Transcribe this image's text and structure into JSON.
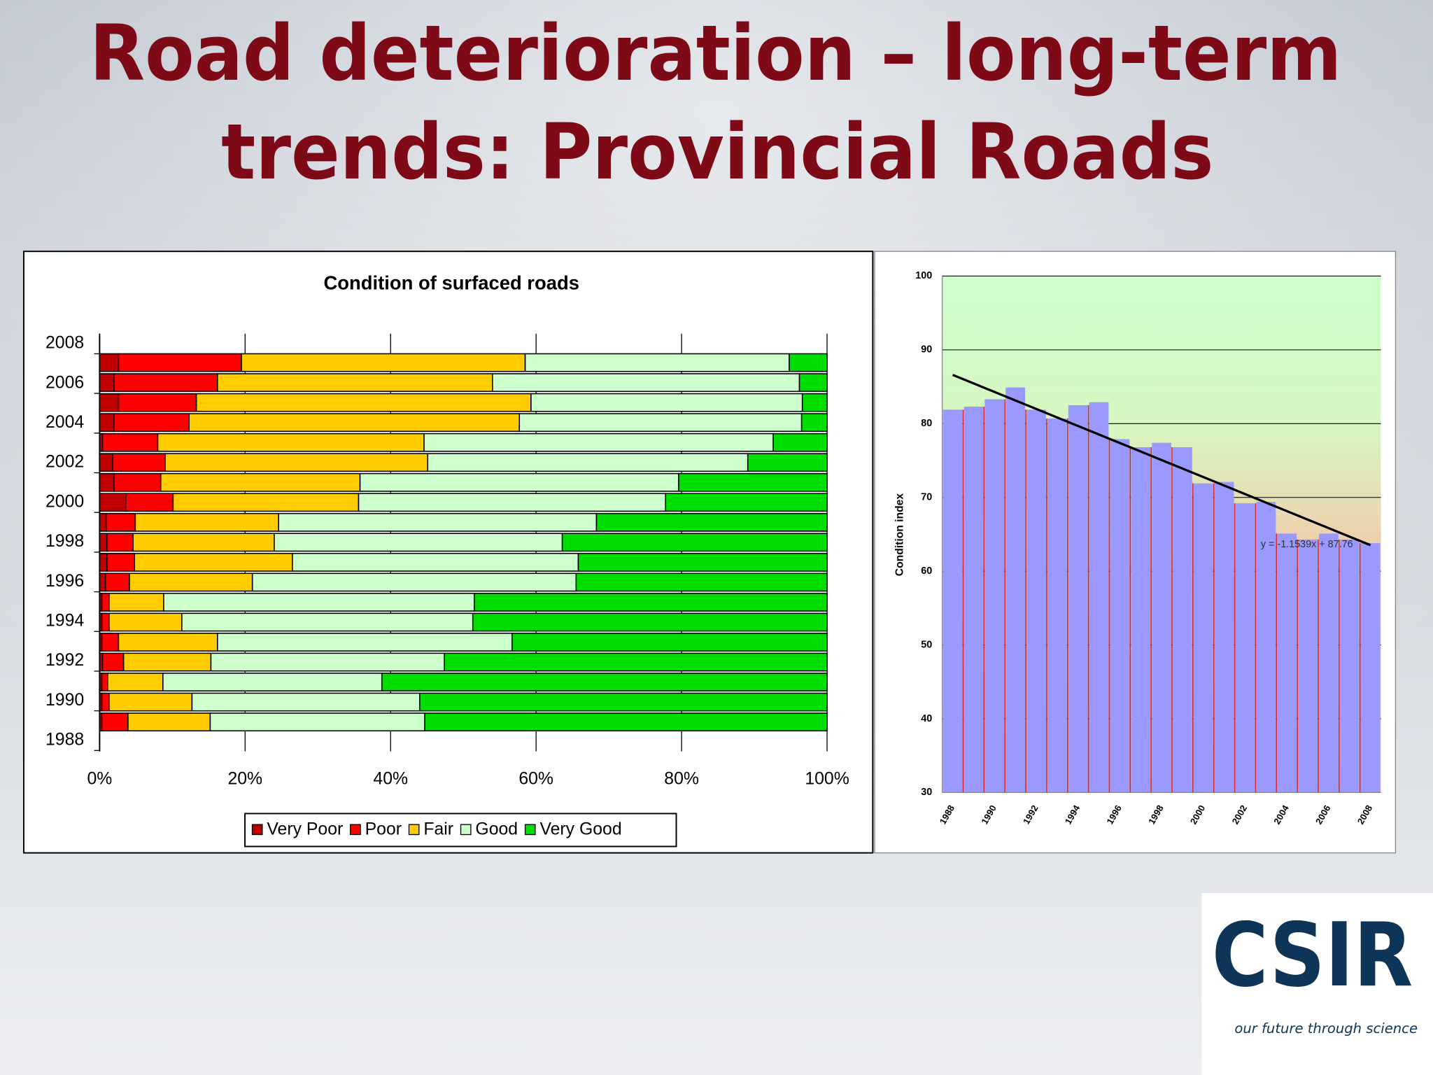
{
  "slide": {
    "title": [
      "Road deterioration – long-term",
      "trends: Provincial Roads"
    ],
    "logo": {
      "name": "CSIR",
      "tagline": "our future through science"
    }
  },
  "chart_data": [
    {
      "type": "stacked_hbar",
      "title": "Condition of surfaced roads",
      "ytick_labels": [
        "1988",
        "1990",
        "1992",
        "1994",
        "1996",
        "1998",
        "2000",
        "2002",
        "2004",
        "2006",
        "2008"
      ],
      "series": [
        {
          "name": "Very Poor",
          "color": "#c00000",
          "values": [
            0.3,
            0.3,
            0.3,
            0.4,
            0.3,
            0.3,
            0.3,
            0.8,
            1.0,
            1.0,
            0.9,
            3.6,
            2.0,
            1.8,
            0.4,
            2.0,
            2.6,
            2.0,
            2.6
          ]
        },
        {
          "name": "Poor",
          "color": "#ff0000",
          "values": [
            3.6,
            1.0,
            0.8,
            2.9,
            2.3,
            1.0,
            1.0,
            3.3,
            3.8,
            3.6,
            4.0,
            6.5,
            6.4,
            7.2,
            7.6,
            10.3,
            10.7,
            14.2,
            16.9
          ]
        },
        {
          "name": "Fair",
          "color": "#ffcc00",
          "values": [
            11.3,
            11.4,
            7.6,
            12.0,
            13.6,
            10.0,
            7.5,
            16.9,
            21.7,
            19.4,
            19.7,
            25.5,
            27.4,
            36.1,
            36.6,
            45.4,
            46.0,
            37.8,
            39.0
          ]
        },
        {
          "name": "Good",
          "color": "#ccffcc",
          "values": [
            29.5,
            31.3,
            30.1,
            32.1,
            40.5,
            40.0,
            42.7,
            44.5,
            39.3,
            39.6,
            43.7,
            42.2,
            43.8,
            44.0,
            48.0,
            38.8,
            37.3,
            42.2,
            36.3
          ]
        },
        {
          "name": "Very Good",
          "color": "#00dd00",
          "values": [
            55.3,
            56.0,
            61.2,
            52.6,
            43.3,
            48.7,
            48.5,
            34.5,
            34.2,
            36.4,
            31.7,
            22.2,
            20.4,
            10.9,
            7.4,
            3.5,
            3.4,
            3.8,
            5.2
          ]
        }
      ],
      "xlim": [
        0,
        100
      ],
      "xticks": [
        {
          "value": 0,
          "label": "0%"
        },
        {
          "value": 20,
          "label": "20%"
        },
        {
          "value": 40,
          "label": "40%"
        },
        {
          "value": 60,
          "label": "60%"
        },
        {
          "value": 80,
          "label": "80%"
        },
        {
          "value": 100,
          "label": "100%"
        }
      ],
      "grid": true,
      "legend": "bottom"
    },
    {
      "type": "bar",
      "ylabel": "Condition index",
      "categories": [
        "1988",
        null,
        "1990",
        null,
        "1992",
        null,
        "1994",
        null,
        "1996",
        null,
        "1998",
        null,
        "2000",
        null,
        "2002",
        null,
        "2004",
        null,
        "2006",
        null,
        "2008"
      ],
      "values": [
        81.9,
        82.3,
        83.3,
        84.9,
        81.9,
        80.7,
        82.5,
        82.9,
        77.9,
        76.8,
        77.4,
        76.8,
        71.9,
        72.1,
        69.2,
        69.4,
        65.1,
        64.3,
        65.1,
        64.3,
        63.8
      ],
      "color": "#9999ff",
      "ylim": [
        30,
        100
      ],
      "yticks": [
        30,
        40,
        50,
        60,
        70,
        80,
        90,
        100
      ],
      "grid": true,
      "trend": {
        "slope": -1.1539,
        "intercept": 87.76,
        "label": "y = -1.1539x + 87.76"
      }
    }
  ]
}
